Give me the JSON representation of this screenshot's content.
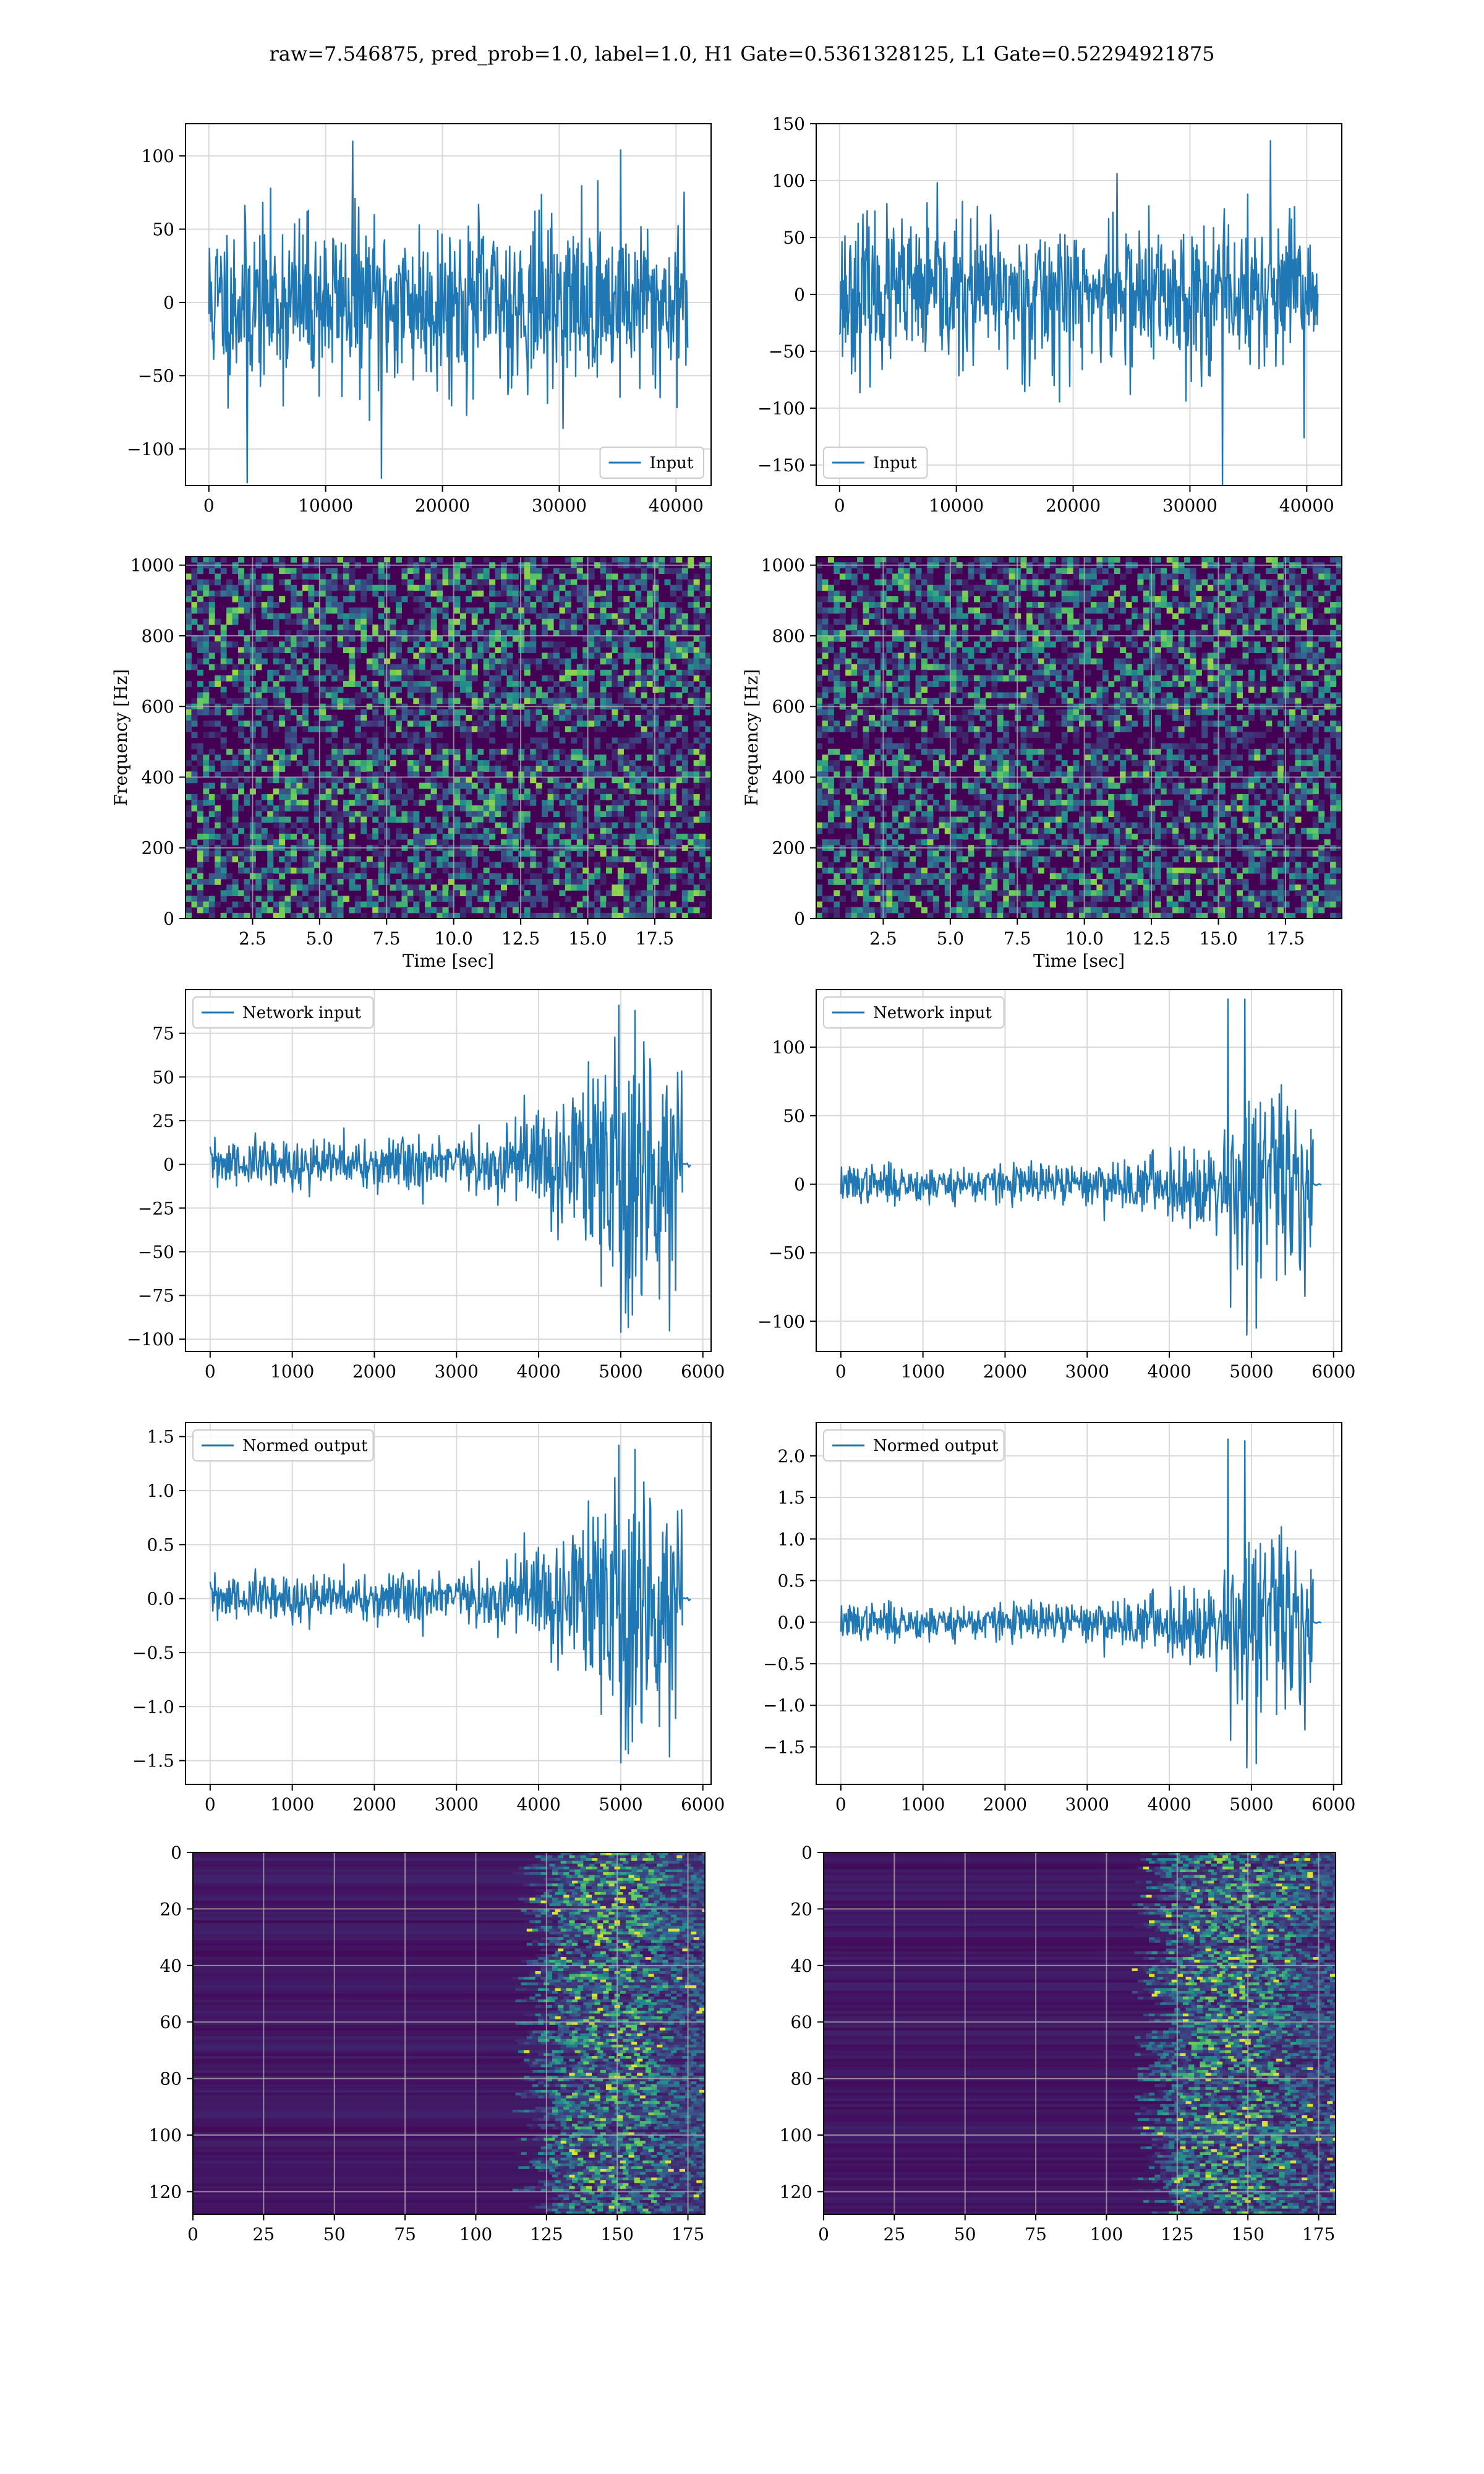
{
  "figure_title": "raw=7.546875, pred_prob=1.0, label=1.0, H1 Gate=0.5361328125, L1 Gate=0.52294921875",
  "colors": {
    "line": "#1f77b4",
    "grid": "#d9d9d9",
    "viridis_low": "#440154",
    "viridis_mid": "#21918c",
    "viridis_high": "#fde725"
  },
  "chart_data": [
    {
      "id": "input-h1",
      "type": "line",
      "legend": "Input",
      "legend_loc": "lower right",
      "grid": true,
      "xlim": [
        -2000,
        43000
      ],
      "ylim": [
        -125,
        122
      ],
      "xticks": [
        0,
        10000,
        20000,
        30000,
        40000
      ],
      "xtick_labels": [
        "0",
        "10000",
        "20000",
        "30000",
        "40000"
      ],
      "yticks": [
        -100,
        -50,
        0,
        50,
        100
      ],
      "ytick_labels": [
        "−100",
        "−50",
        "0",
        "50",
        "100"
      ],
      "signal": {
        "kind": "noise",
        "x": [
          0,
          41000
        ],
        "n": 800,
        "base": 52,
        "seed": 11,
        "env": [
          [
            0,
            1
          ],
          [
            1,
            1
          ]
        ],
        "spikes": [
          [
            0.08,
            -123
          ],
          [
            0.3,
            110
          ],
          [
            0.36,
            -120
          ],
          [
            0.86,
            104
          ]
        ]
      }
    },
    {
      "id": "input-l1",
      "type": "line",
      "legend": "Input",
      "legend_loc": "lower left",
      "grid": true,
      "xlim": [
        -2000,
        43000
      ],
      "ylim": [
        -168,
        150
      ],
      "xticks": [
        0,
        10000,
        20000,
        30000,
        40000
      ],
      "xtick_labels": [
        "0",
        "10000",
        "20000",
        "30000",
        "40000"
      ],
      "yticks": [
        -150,
        -100,
        -50,
        0,
        50,
        100,
        150
      ],
      "ytick_labels": [
        "−150",
        "−100",
        "−50",
        "0",
        "50",
        "100",
        "150"
      ],
      "signal": {
        "kind": "noise",
        "x": [
          0,
          41000
        ],
        "n": 800,
        "base": 58,
        "seed": 23,
        "env": [
          [
            0,
            1
          ],
          [
            1,
            1
          ]
        ],
        "spikes": [
          [
            0.58,
            106
          ],
          [
            0.8,
            -168
          ],
          [
            0.9,
            135
          ],
          [
            0.97,
            -126
          ]
        ]
      }
    },
    {
      "id": "spectrogram-h1",
      "type": "heatmap",
      "grid": true,
      "xlabel": "Time [sec]",
      "ylabel": "Frequency [Hz]",
      "xlim": [
        0,
        19.6
      ],
      "ylim": [
        0,
        1024
      ],
      "xticks": [
        2.5,
        5.0,
        7.5,
        10.0,
        12.5,
        15.0,
        17.5
      ],
      "xtick_labels": [
        "2.5",
        "5.0",
        "7.5",
        "10.0",
        "12.5",
        "15.0",
        "17.5"
      ],
      "yticks": [
        0,
        200,
        400,
        600,
        800,
        1000
      ],
      "ytick_labels": [
        "0",
        "200",
        "400",
        "600",
        "800",
        "1000"
      ],
      "grid_cells": {
        "cols": 90,
        "rows": 64,
        "seed": 5,
        "style": "noise"
      }
    },
    {
      "id": "spectrogram-l1",
      "type": "heatmap",
      "grid": true,
      "xlabel": "Time [sec]",
      "ylabel": "Frequency [Hz]",
      "xlim": [
        0,
        19.6
      ],
      "ylim": [
        0,
        1024
      ],
      "xticks": [
        2.5,
        5.0,
        7.5,
        10.0,
        12.5,
        15.0,
        17.5
      ],
      "xtick_labels": [
        "2.5",
        "5.0",
        "7.5",
        "10.0",
        "12.5",
        "15.0",
        "17.5"
      ],
      "yticks": [
        0,
        200,
        400,
        600,
        800,
        1000
      ],
      "ytick_labels": [
        "0",
        "200",
        "400",
        "600",
        "800",
        "1000"
      ],
      "grid_cells": {
        "cols": 90,
        "rows": 64,
        "seed": 9,
        "style": "noise"
      }
    },
    {
      "id": "network-input-h1",
      "type": "line",
      "legend": "Network input",
      "legend_loc": "upper left",
      "grid": true,
      "xlim": [
        -300,
        6100
      ],
      "ylim": [
        -107,
        100
      ],
      "xticks": [
        0,
        1000,
        2000,
        3000,
        4000,
        5000,
        6000
      ],
      "xtick_labels": [
        "0",
        "1000",
        "2000",
        "3000",
        "4000",
        "5000",
        "6000"
      ],
      "yticks": [
        -100,
        -75,
        -50,
        -25,
        0,
        25,
        50,
        75
      ],
      "ytick_labels": [
        "−100",
        "−75",
        "−50",
        "−25",
        "0",
        "25",
        "50",
        "75"
      ],
      "signal": {
        "kind": "noise",
        "x": [
          0,
          5750
        ],
        "n": 700,
        "base": 13,
        "seed": 31,
        "env": [
          [
            0,
            1
          ],
          [
            0.5,
            1.1
          ],
          [
            0.62,
            1.6
          ],
          [
            0.78,
            2.6
          ],
          [
            0.82,
            5.2
          ],
          [
            0.9,
            6.0
          ],
          [
            0.96,
            4.6
          ],
          [
            1,
            4.0
          ]
        ],
        "spikes": [
          [
            0.865,
            91
          ],
          [
            0.87,
            -96
          ],
          [
            0.9,
            88
          ],
          [
            0.88,
            -85
          ]
        ],
        "tail": [
          5750,
          5850,
          3
        ]
      }
    },
    {
      "id": "network-input-l1",
      "type": "line",
      "legend": "Network input",
      "legend_loc": "upper left",
      "grid": true,
      "xlim": [
        -300,
        6100
      ],
      "ylim": [
        -122,
        142
      ],
      "xticks": [
        0,
        1000,
        2000,
        3000,
        4000,
        5000,
        6000
      ],
      "xtick_labels": [
        "0",
        "1000",
        "2000",
        "3000",
        "4000",
        "5000",
        "6000"
      ],
      "yticks": [
        -100,
        -50,
        0,
        50,
        100
      ],
      "ytick_labels": [
        "−100",
        "−50",
        "0",
        "50",
        "100"
      ],
      "signal": {
        "kind": "noise",
        "x": [
          0,
          5750
        ],
        "n": 700,
        "base": 12,
        "seed": 37,
        "env": [
          [
            0,
            1
          ],
          [
            0.5,
            1.1
          ],
          [
            0.65,
            1.6
          ],
          [
            0.8,
            2.5
          ],
          [
            0.82,
            4.8
          ],
          [
            0.9,
            5.5
          ],
          [
            0.97,
            4.4
          ],
          [
            1,
            4.0
          ]
        ],
        "spikes": [
          [
            0.82,
            135
          ],
          [
            0.855,
            135
          ],
          [
            0.86,
            -110
          ],
          [
            0.88,
            -105
          ]
        ],
        "tail": [
          5750,
          5850,
          2
        ]
      }
    },
    {
      "id": "normed-output-h1",
      "type": "line",
      "legend": "Normed output",
      "legend_loc": "upper left",
      "grid": true,
      "xlim": [
        -300,
        6100
      ],
      "ylim": [
        -1.72,
        1.63
      ],
      "xticks": [
        0,
        1000,
        2000,
        3000,
        4000,
        5000,
        6000
      ],
      "xtick_labels": [
        "0",
        "1000",
        "2000",
        "3000",
        "4000",
        "5000",
        "6000"
      ],
      "yticks": [
        -1.5,
        -1.0,
        -0.5,
        0.0,
        0.5,
        1.0,
        1.5
      ],
      "ytick_labels": [
        "−1.5",
        "−1.0",
        "−0.5",
        "0.0",
        "0.5",
        "1.0",
        "1.5"
      ],
      "signal": {
        "kind": "noise",
        "x": [
          0,
          5750
        ],
        "n": 700,
        "base": 0.2,
        "seed": 31,
        "env": [
          [
            0,
            1
          ],
          [
            0.5,
            1.1
          ],
          [
            0.62,
            1.6
          ],
          [
            0.78,
            2.6
          ],
          [
            0.82,
            5.2
          ],
          [
            0.9,
            6.0
          ],
          [
            0.96,
            4.6
          ],
          [
            1,
            4.0
          ]
        ],
        "spikes": [
          [
            0.865,
            1.42
          ],
          [
            0.87,
            -1.52
          ],
          [
            0.9,
            1.38
          ],
          [
            0.88,
            -1.4
          ]
        ],
        "tail": [
          5750,
          5850,
          0.04
        ]
      }
    },
    {
      "id": "normed-output-l1",
      "type": "line",
      "legend": "Normed output",
      "legend_loc": "upper left",
      "grid": true,
      "xlim": [
        -300,
        6100
      ],
      "ylim": [
        -1.95,
        2.4
      ],
      "xticks": [
        0,
        1000,
        2000,
        3000,
        4000,
        5000,
        6000
      ],
      "xtick_labels": [
        "0",
        "1000",
        "2000",
        "3000",
        "4000",
        "5000",
        "6000"
      ],
      "yticks": [
        -1.5,
        -1.0,
        -0.5,
        0.0,
        0.5,
        1.0,
        1.5,
        2.0
      ],
      "ytick_labels": [
        "−1.5",
        "−1.0",
        "−0.5",
        "0.0",
        "0.5",
        "1.0",
        "1.5",
        "2.0"
      ],
      "signal": {
        "kind": "noise",
        "x": [
          0,
          5750
        ],
        "n": 700,
        "base": 0.19,
        "seed": 37,
        "env": [
          [
            0,
            1
          ],
          [
            0.5,
            1.1
          ],
          [
            0.65,
            1.6
          ],
          [
            0.8,
            2.5
          ],
          [
            0.82,
            4.8
          ],
          [
            0.9,
            5.5
          ],
          [
            0.97,
            4.4
          ],
          [
            1,
            4.0
          ]
        ],
        "spikes": [
          [
            0.82,
            2.2
          ],
          [
            0.855,
            2.18
          ],
          [
            0.86,
            -1.75
          ],
          [
            0.88,
            -1.7
          ]
        ],
        "tail": [
          5750,
          5850,
          0.03
        ]
      }
    },
    {
      "id": "feature-map-h1",
      "type": "heatmap",
      "grid": true,
      "xlim": [
        0,
        181
      ],
      "ylim": [
        128,
        0
      ],
      "xticks": [
        0,
        25,
        50,
        75,
        100,
        125,
        150,
        175
      ],
      "xtick_labels": [
        "0",
        "25",
        "50",
        "75",
        "100",
        "125",
        "150",
        "175"
      ],
      "yticks": [
        0,
        20,
        40,
        60,
        80,
        100,
        120
      ],
      "ytick_labels": [
        "0",
        "20",
        "40",
        "60",
        "80",
        "100",
        "120"
      ],
      "grid_cells": {
        "cols": 181,
        "rows": 128,
        "seed": 41,
        "style": "rows",
        "onset": 122
      }
    },
    {
      "id": "feature-map-l1",
      "type": "heatmap",
      "grid": true,
      "xlim": [
        0,
        181
      ],
      "ylim": [
        128,
        0
      ],
      "xticks": [
        0,
        25,
        50,
        75,
        100,
        125,
        150,
        175
      ],
      "xtick_labels": [
        "0",
        "25",
        "50",
        "75",
        "100",
        "125",
        "150",
        "175"
      ],
      "yticks": [
        0,
        20,
        40,
        60,
        80,
        100,
        120
      ],
      "ytick_labels": [
        "0",
        "20",
        "40",
        "60",
        "80",
        "100",
        "120"
      ],
      "grid_cells": {
        "cols": 181,
        "rows": 128,
        "seed": 43,
        "style": "rows",
        "onset": 118
      }
    }
  ]
}
